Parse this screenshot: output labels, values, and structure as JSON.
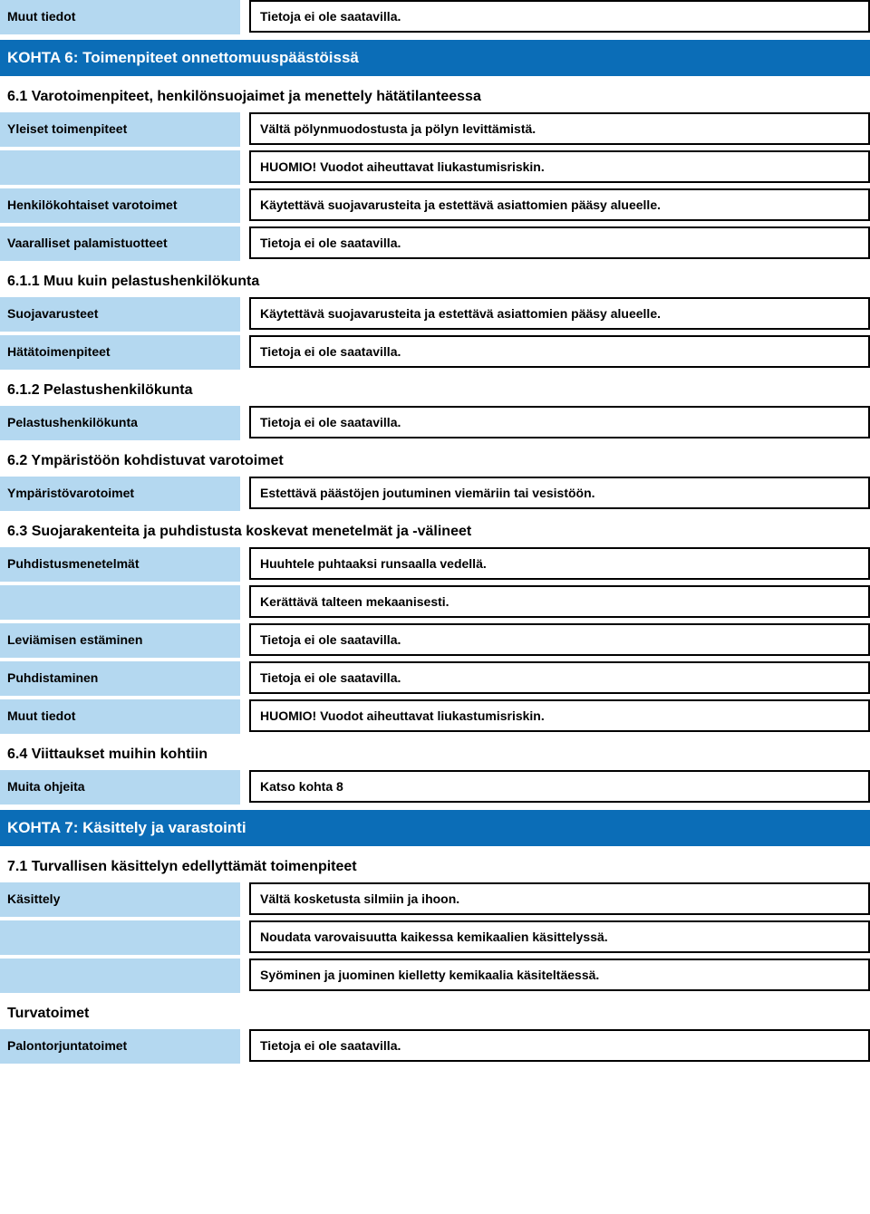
{
  "colors": {
    "label_bg": "#b4d8f0",
    "section_bg": "#0b6db7",
    "section_text": "#ffffff",
    "border": "#000000",
    "page_bg": "#ffffff",
    "text": "#000000"
  },
  "typography": {
    "body_font": "Arial, Helvetica, sans-serif",
    "label_fontsize": 14,
    "section_fontsize": 17,
    "subheading_fontsize": 16,
    "value_fontsize": 14
  },
  "rows": {
    "r1": {
      "label": "Muut tiedot",
      "values": [
        "Tietoja ei ole saatavilla."
      ]
    },
    "section6": "KOHTA 6: Toimenpiteet onnettomuuspäästöissä",
    "h6_1": "6.1 Varotoimenpiteet, henkilönsuojaimet ja menettely hätätilanteessa",
    "r2": {
      "label": "Yleiset toimenpiteet",
      "values": [
        "Vältä pölynmuodostusta ja pölyn levittämistä.",
        "HUOMIO! Vuodot aiheuttavat liukastumisriskin."
      ]
    },
    "r3": {
      "label": "Henkilökohtaiset varotoimet",
      "values": [
        "Käytettävä suojavarusteita ja estettävä asiattomien pääsy alueelle."
      ]
    },
    "r4": {
      "label": "Vaaralliset palamistuotteet",
      "values": [
        "Tietoja ei ole saatavilla."
      ]
    },
    "h6_1_1": "6.1.1 Muu kuin pelastushenkilökunta",
    "r5": {
      "label": "Suojavarusteet",
      "values": [
        "Käytettävä suojavarusteita ja estettävä asiattomien pääsy alueelle."
      ]
    },
    "r6": {
      "label": "Hätätoimenpiteet",
      "values": [
        "Tietoja ei ole saatavilla."
      ]
    },
    "h6_1_2": "6.1.2 Pelastushenkilökunta",
    "r7": {
      "label": "Pelastushenkilökunta",
      "values": [
        "Tietoja ei ole saatavilla."
      ]
    },
    "h6_2": "6.2 Ympäristöön kohdistuvat varotoimet",
    "r8": {
      "label": "Ympäristövarotoimet",
      "values": [
        "Estettävä päästöjen joutuminen viemäriin tai vesistöön."
      ]
    },
    "h6_3": "6.3 Suojarakenteita ja puhdistusta koskevat menetelmät ja -välineet",
    "r9": {
      "label": "Puhdistusmenetelmät",
      "values": [
        "Huuhtele puhtaaksi runsaalla vedellä.",
        "Kerättävä talteen mekaanisesti."
      ]
    },
    "r10": {
      "label": "Leviämisen estäminen",
      "values": [
        "Tietoja ei ole saatavilla."
      ]
    },
    "r11": {
      "label": "Puhdistaminen",
      "values": [
        "Tietoja ei ole saatavilla."
      ]
    },
    "r12": {
      "label": "Muut tiedot",
      "values": [
        "HUOMIO! Vuodot aiheuttavat liukastumisriskin."
      ]
    },
    "h6_4": "6.4 Viittaukset muihin kohtiin",
    "r13": {
      "label": "Muita ohjeita",
      "values": [
        "Katso kohta 8"
      ]
    },
    "section7": "KOHTA 7: Käsittely ja varastointi",
    "h7_1": "7.1 Turvallisen käsittelyn edellyttämät toimenpiteet",
    "r14": {
      "label": "Käsittely",
      "values": [
        "Vältä kosketusta silmiin ja ihoon.",
        "Noudata varovaisuutta kaikessa kemikaalien käsittelyssä.",
        "Syöminen ja juominen kielletty kemikaalia käsiteltäessä."
      ]
    },
    "h_turvatoimet": "Turvatoimet",
    "r15": {
      "label": "Palontorjuntatoimet",
      "values": [
        "Tietoja ei ole saatavilla."
      ]
    }
  }
}
